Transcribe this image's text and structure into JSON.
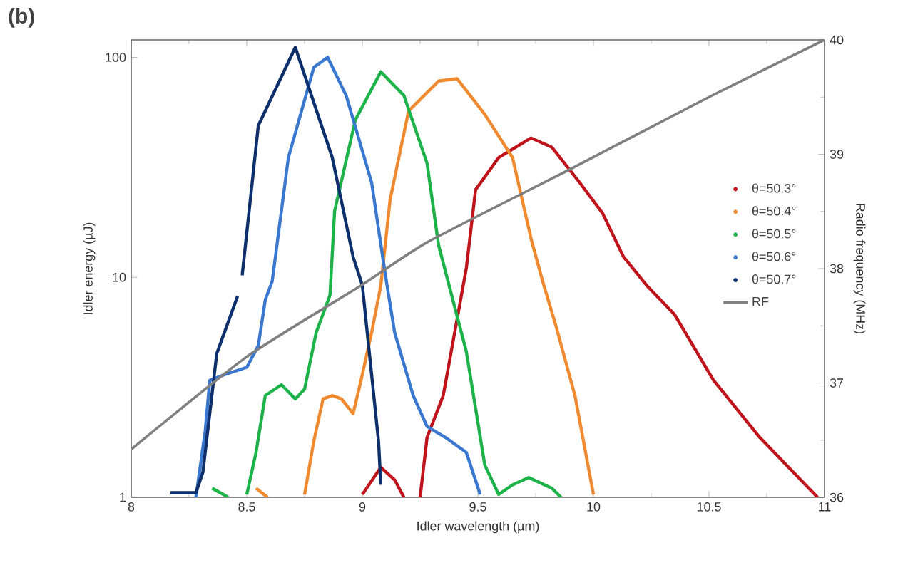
{
  "chart_data": {
    "type": "line",
    "title": "(b)",
    "xlabel": "Idler wavelength (µm)",
    "ylabel": "Idler energy (µJ)",
    "y2label": "Radio frequency (MHz)",
    "log": "y",
    "xlim": [
      8,
      11
    ],
    "xticks": [
      8,
      8.5,
      9,
      9.5,
      10,
      10.5,
      11
    ],
    "ylim": [
      1,
      120
    ],
    "yticks": [
      1,
      10,
      100
    ],
    "y2lim": [
      36,
      40
    ],
    "y2ticks": [
      36,
      37,
      38,
      39,
      40
    ],
    "grid": false,
    "legend": "right",
    "marker": "none",
    "line_style": "solid",
    "series": [
      {
        "name": "θ=50.3°",
        "color": "#c0141c",
        "x": [
          9.0,
          9.08,
          9.14,
          9.18,
          9.22,
          9.25,
          9.28,
          9.35,
          9.45,
          9.49,
          9.59,
          9.73,
          9.82,
          9.94,
          10.04,
          10.13,
          10.23,
          10.35,
          10.52,
          10.72,
          10.97
        ],
        "values": [
          1.03,
          1.37,
          1.2,
          1.0,
          null,
          1.0,
          1.87,
          2.9,
          11,
          25,
          35,
          43,
          39,
          27,
          19.5,
          12.4,
          9.2,
          6.8,
          3.4,
          1.87,
          1.0
        ]
      },
      {
        "name": "θ=50.4°",
        "color": "#f08a30",
        "x": [
          8.54,
          8.59,
          8.67,
          8.75,
          8.79,
          8.83,
          8.87,
          8.91,
          8.96,
          8.99,
          9.04,
          9.08,
          9.12,
          9.2,
          9.33,
          9.41,
          9.53,
          9.65,
          9.73,
          9.78,
          9.84,
          9.92,
          10.0
        ],
        "values": [
          1.1,
          1.0,
          null,
          1.03,
          1.8,
          2.8,
          2.9,
          2.8,
          2.4,
          3.25,
          5.6,
          9.2,
          22.5,
          57,
          78,
          80,
          55,
          35,
          15,
          9.6,
          5.9,
          2.9,
          1.03
        ]
      },
      {
        "name": "θ=50.5°",
        "color": "#1db34a",
        "x": [
          8.35,
          8.42,
          8.46,
          8.5,
          8.54,
          8.58,
          8.65,
          8.71,
          8.75,
          8.8,
          8.86,
          8.88,
          8.97,
          9.08,
          9.18,
          9.28,
          9.33,
          9.45,
          9.53,
          9.59,
          9.65,
          9.72,
          9.82,
          9.86
        ],
        "values": [
          1.1,
          1.0,
          null,
          1.03,
          1.6,
          2.9,
          3.25,
          2.8,
          3.1,
          5.6,
          8.3,
          20,
          52,
          86,
          67,
          33,
          14,
          4.6,
          1.4,
          1.03,
          1.14,
          1.23,
          1.1,
          1.0
        ]
      },
      {
        "name": "θ=50.6°",
        "color": "#3a78d0",
        "x": [
          8.28,
          8.32,
          8.34,
          8.4,
          8.5,
          8.55,
          8.58,
          8.61,
          8.68,
          8.79,
          8.85,
          8.93,
          9.04,
          9.1,
          9.14,
          9.22,
          9.28,
          9.36,
          9.45,
          9.51
        ],
        "values": [
          1.0,
          2.0,
          3.4,
          3.6,
          3.9,
          4.9,
          7.9,
          9.6,
          35,
          90,
          100,
          67,
          27,
          10.2,
          5.6,
          2.9,
          2.1,
          1.87,
          1.6,
          1.03
        ]
      },
      {
        "name": "θ=50.7°",
        "color": "#0d2f6b",
        "x": [
          8.17,
          8.28,
          8.31,
          8.37,
          8.46,
          8.47,
          8.48,
          8.55,
          8.71,
          8.87,
          8.96,
          9.0,
          9.07,
          9.08
        ],
        "values": [
          1.05,
          1.05,
          1.3,
          4.5,
          8.2,
          null,
          10.2,
          49,
          111,
          35,
          12.4,
          9.2,
          1.8,
          1.14
        ]
      },
      {
        "name": "RF",
        "color": "#808080",
        "axis": "y2",
        "x": [
          8,
          8.5,
          9,
          9.28,
          9.9,
          10.5,
          11
        ],
        "values": [
          36.42,
          37.23,
          37.86,
          38.23,
          38.87,
          39.5,
          40
        ]
      }
    ]
  }
}
